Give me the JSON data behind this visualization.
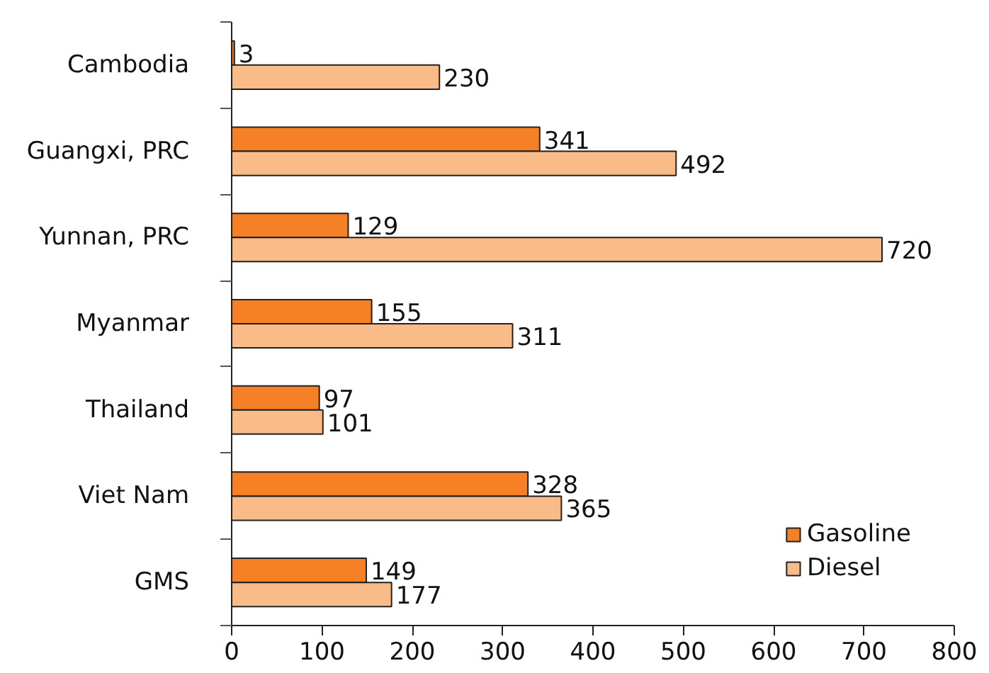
{
  "chart_data": {
    "type": "bar",
    "orientation": "horizontal",
    "categories": [
      "Cambodia",
      "Guangxi, PRC",
      "Yunnan, PRC",
      "Myanmar",
      "Thailand",
      "Viet Nam",
      "GMS"
    ],
    "series": [
      {
        "name": "Gasoline",
        "color": "#f58025",
        "values": [
          3,
          341,
          129,
          155,
          97,
          328,
          149
        ]
      },
      {
        "name": "Diesel",
        "color": "#f9bb87",
        "values": [
          230,
          492,
          720,
          311,
          101,
          365,
          177
        ]
      }
    ],
    "xlim": [
      0,
      800
    ],
    "xticks": [
      0,
      100,
      200,
      300,
      400,
      500,
      600,
      700,
      800
    ],
    "data_labels": true,
    "legend": "bottom right"
  }
}
